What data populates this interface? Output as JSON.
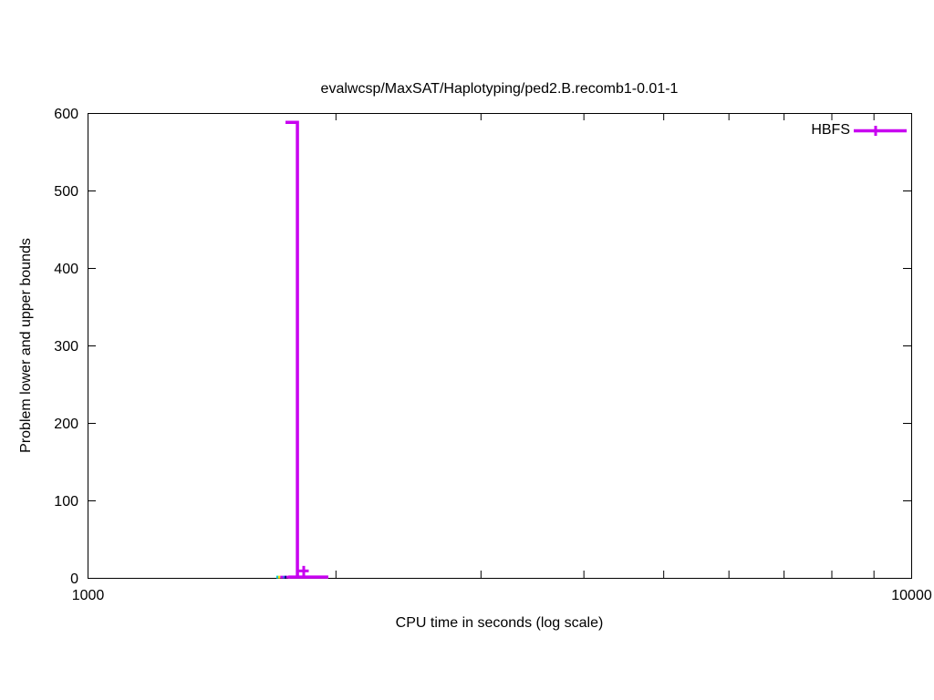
{
  "chart_data": {
    "type": "line",
    "title": "evalwcsp/MaxSAT/Haplotyping/ped2.B.recomb1-0.01-1",
    "xlabel": "CPU time in seconds (log scale)",
    "ylabel": "Problem lower and upper bounds",
    "x_scale": "log10",
    "xlim": [
      1000,
      10000
    ],
    "ylim": [
      0,
      600
    ],
    "grid": false,
    "x_major_ticks": [
      {
        "value": 1000,
        "label": "1000"
      },
      {
        "value": 10000,
        "label": "10000"
      }
    ],
    "x_minor_ticks": [
      2000,
      3000,
      4000,
      5000,
      6000,
      7000,
      8000,
      9000
    ],
    "y_ticks": [
      {
        "value": 0,
        "label": "0"
      },
      {
        "value": 100,
        "label": "100"
      },
      {
        "value": 200,
        "label": "200"
      },
      {
        "value": 300,
        "label": "300"
      },
      {
        "value": 400,
        "label": "400"
      },
      {
        "value": 500,
        "label": "500"
      },
      {
        "value": 600,
        "label": "600"
      }
    ],
    "legend": {
      "position": "top-right-inside",
      "entries": [
        {
          "label": "HBFS",
          "color": "#c800f0",
          "marker": "plus"
        }
      ]
    },
    "series": [
      {
        "name": "HBFS-upper-bound",
        "color": "#c800f0",
        "width": 3.5,
        "points": [
          [
            1739,
            588
          ],
          [
            1798,
            588
          ],
          [
            1798,
            1
          ]
        ]
      },
      {
        "name": "HBFS-lower-bound",
        "color": "#c800f0",
        "width": 3.5,
        "points": [
          [
            1753,
            1
          ],
          [
            1960,
            1
          ]
        ],
        "marker_points": [
          [
            1830,
            9
          ]
        ]
      }
    ],
    "tiny_marks": [
      {
        "x1": 1695,
        "x2": 1704,
        "y": 1,
        "color": "#00d0d0"
      },
      {
        "x1": 1704,
        "x2": 1714,
        "y": 1,
        "color": "#ffe000"
      },
      {
        "x1": 1714,
        "x2": 1726,
        "y": 1,
        "color": "#c800f0"
      },
      {
        "x1": 1726,
        "x2": 1735,
        "y": 1,
        "color": "#5050ff"
      },
      {
        "x1": 1735,
        "x2": 1744,
        "y": 1,
        "color": "#000088"
      },
      {
        "x1": 1744,
        "x2": 1753,
        "y": 1,
        "color": "#c800f0"
      },
      {
        "x1": 1753,
        "x2": 1762,
        "y": 1,
        "color": "#ff9000"
      }
    ]
  }
}
